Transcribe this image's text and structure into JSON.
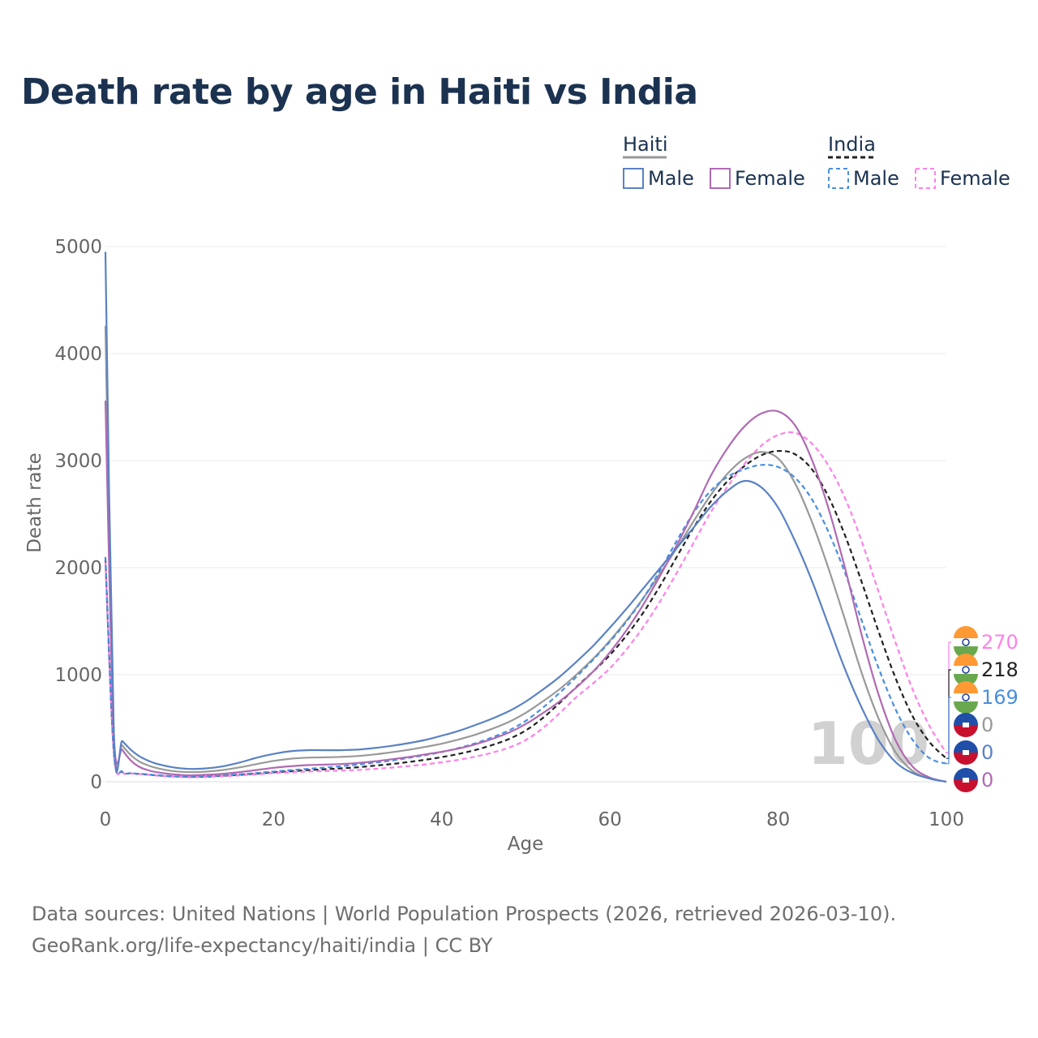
{
  "title": "Death rate by age in Haiti vs India",
  "source": {
    "line1": "Data sources: United Nations | World Population Prospects (2026, retrieved 2026-03-10).",
    "line2": "GeoRank.org/life-expectancy/haiti/india | CC BY"
  },
  "legend": {
    "groups": [
      {
        "name": "Haiti",
        "items": [
          "Male",
          "Female"
        ]
      },
      {
        "name": "India",
        "items": [
          "Male",
          "Female"
        ]
      }
    ]
  },
  "age_watermark": "100",
  "end_labels": [
    {
      "value": "270",
      "country": "India",
      "color": "#ff80e8"
    },
    {
      "value": "218",
      "country": "India",
      "color": "#222222"
    },
    {
      "value": "169",
      "country": "India",
      "color": "#4a8fe0"
    },
    {
      "value": "0",
      "country": "Haiti",
      "color": "#999999"
    },
    {
      "value": "0",
      "country": "Haiti",
      "color": "#5a82c4"
    },
    {
      "value": "0",
      "country": "Haiti",
      "color": "#b06ab3"
    }
  ],
  "chart_data": {
    "type": "line",
    "title": "Death rate by age in Haiti vs India",
    "xlabel": "Age",
    "ylabel": "Death rate",
    "xlim": [
      0,
      100
    ],
    "ylim": [
      0,
      5000
    ],
    "xticks": [
      0,
      20,
      40,
      60,
      80,
      100
    ],
    "yticks": [
      0,
      1000,
      2000,
      3000,
      4000,
      5000
    ],
    "grid": true,
    "series": [
      {
        "name": "Haiti Male",
        "color": "#5a82c4",
        "dash": false,
        "x": [
          0,
          1,
          2,
          3,
          4,
          5,
          6,
          8,
          10,
          12,
          14,
          16,
          18,
          20,
          22,
          24,
          26,
          28,
          30,
          32,
          34,
          36,
          38,
          40,
          42,
          44,
          46,
          48,
          50,
          52,
          54,
          56,
          58,
          60,
          62,
          64,
          66,
          68,
          70,
          72,
          74,
          76,
          78,
          80,
          82,
          84,
          86,
          88,
          90,
          92,
          94,
          96,
          98,
          100
        ],
        "y": [
          4950,
          450,
          380,
          300,
          240,
          200,
          170,
          135,
          120,
          125,
          145,
          180,
          225,
          260,
          285,
          295,
          295,
          295,
          300,
          315,
          335,
          360,
          390,
          430,
          475,
          530,
          590,
          660,
          750,
          860,
          980,
          1120,
          1270,
          1440,
          1620,
          1810,
          2000,
          2190,
          2380,
          2570,
          2720,
          2810,
          2750,
          2560,
          2250,
          1880,
          1460,
          1040,
          680,
          380,
          180,
          80,
          30,
          0
        ]
      },
      {
        "name": "Haiti Female",
        "color": "#b06ab3",
        "dash": false,
        "x": [
          0,
          1,
          2,
          3,
          4,
          5,
          6,
          8,
          10,
          12,
          14,
          16,
          18,
          20,
          22,
          24,
          26,
          28,
          30,
          32,
          34,
          36,
          38,
          40,
          42,
          44,
          46,
          48,
          50,
          52,
          54,
          56,
          58,
          60,
          62,
          64,
          66,
          68,
          70,
          72,
          74,
          76,
          78,
          80,
          82,
          84,
          86,
          88,
          90,
          92,
          94,
          96,
          98,
          100
        ],
        "y": [
          3560,
          440,
          300,
          200,
          140,
          110,
          90,
          70,
          60,
          65,
          75,
          90,
          110,
          130,
          145,
          155,
          160,
          165,
          175,
          190,
          210,
          230,
          255,
          280,
          310,
          350,
          400,
          460,
          540,
          640,
          750,
          880,
          1030,
          1210,
          1420,
          1660,
          1930,
          2220,
          2530,
          2860,
          3120,
          3320,
          3440,
          3460,
          3330,
          3010,
          2550,
          1980,
          1350,
          800,
          380,
          140,
          40,
          0
        ]
      },
      {
        "name": "India Male",
        "color": "#4a8fe0",
        "dash": true,
        "x": [
          0,
          1,
          2,
          3,
          4,
          5,
          6,
          8,
          10,
          12,
          14,
          16,
          18,
          20,
          22,
          24,
          26,
          28,
          30,
          32,
          34,
          36,
          38,
          40,
          42,
          44,
          46,
          48,
          50,
          52,
          54,
          56,
          58,
          60,
          62,
          64,
          66,
          68,
          70,
          72,
          74,
          76,
          78,
          80,
          82,
          84,
          86,
          88,
          90,
          92,
          94,
          96,
          98,
          100
        ],
        "y": [
          2100,
          280,
          95,
          80,
          75,
          70,
          62,
          52,
          48,
          52,
          60,
          70,
          82,
          95,
          108,
          120,
          132,
          145,
          160,
          178,
          198,
          222,
          248,
          278,
          315,
          360,
          415,
          480,
          570,
          690,
          830,
          980,
          1140,
          1310,
          1500,
          1720,
          1980,
          2260,
          2520,
          2720,
          2850,
          2920,
          2960,
          2940,
          2840,
          2640,
          2330,
          1940,
          1490,
          1050,
          670,
          390,
          220,
          169
        ]
      },
      {
        "name": "India Female",
        "color": "#ff80e8",
        "dash": true,
        "x": [
          0,
          1,
          2,
          3,
          4,
          5,
          6,
          8,
          10,
          12,
          14,
          16,
          18,
          20,
          22,
          24,
          26,
          28,
          30,
          32,
          34,
          36,
          38,
          40,
          42,
          44,
          46,
          48,
          50,
          52,
          54,
          56,
          58,
          60,
          62,
          64,
          66,
          68,
          70,
          72,
          74,
          76,
          78,
          80,
          82,
          84,
          86,
          88,
          90,
          92,
          94,
          96,
          98,
          100
        ],
        "y": [
          2050,
          270,
          90,
          78,
          72,
          65,
          58,
          48,
          42,
          45,
          52,
          60,
          70,
          80,
          88,
          95,
          100,
          105,
          110,
          120,
          132,
          146,
          162,
          182,
          205,
          235,
          272,
          320,
          390,
          500,
          640,
          790,
          920,
          1060,
          1240,
          1450,
          1690,
          1960,
          2240,
          2520,
          2760,
          2970,
          3140,
          3240,
          3260,
          3160,
          2950,
          2640,
          2230,
          1760,
          1290,
          860,
          520,
          270
        ]
      },
      {
        "name": "Haiti (average)",
        "color": "#999999",
        "dash": false,
        "x": [
          0,
          1,
          2,
          3,
          4,
          5,
          6,
          8,
          10,
          12,
          14,
          16,
          18,
          20,
          22,
          24,
          26,
          28,
          30,
          32,
          34,
          36,
          38,
          40,
          42,
          44,
          46,
          48,
          50,
          52,
          54,
          56,
          58,
          60,
          62,
          64,
          66,
          68,
          70,
          72,
          74,
          76,
          78,
          80,
          82,
          84,
          86,
          88,
          90,
          92,
          94,
          96,
          98,
          100
        ],
        "y": [
          4260,
          440,
          340,
          250,
          190,
          155,
          130,
          100,
          90,
          95,
          110,
          135,
          165,
          195,
          215,
          225,
          228,
          232,
          240,
          255,
          275,
          298,
          325,
          355,
          395,
          440,
          495,
          560,
          645,
          750,
          865,
          1000,
          1150,
          1320,
          1510,
          1720,
          1950,
          2190,
          2440,
          2680,
          2880,
          3020,
          3080,
          3020,
          2790,
          2430,
          1990,
          1500,
          1000,
          580,
          270,
          100,
          30,
          0
        ]
      },
      {
        "name": "India (average)",
        "color": "#222222",
        "dash": true,
        "x": [
          0,
          1,
          2,
          3,
          4,
          5,
          6,
          8,
          10,
          12,
          14,
          16,
          18,
          20,
          22,
          24,
          26,
          28,
          30,
          32,
          34,
          36,
          38,
          40,
          42,
          44,
          46,
          48,
          50,
          52,
          54,
          56,
          58,
          60,
          62,
          64,
          66,
          68,
          70,
          72,
          74,
          76,
          78,
          80,
          82,
          84,
          86,
          88,
          90,
          92,
          94,
          96,
          98,
          100
        ],
        "y": [
          2080,
          275,
          92,
          79,
          73,
          67,
          60,
          50,
          45,
          48,
          56,
          65,
          76,
          88,
          98,
          108,
          116,
          125,
          135,
          150,
          165,
          184,
          205,
          230,
          260,
          297,
          343,
          400,
          480,
          595,
          735,
          885,
          1030,
          1185,
          1370,
          1585,
          1835,
          2110,
          2380,
          2620,
          2810,
          2950,
          3050,
          3090,
          3060,
          2920,
          2660,
          2290,
          1850,
          1390,
          960,
          610,
          370,
          218
        ]
      }
    ]
  }
}
